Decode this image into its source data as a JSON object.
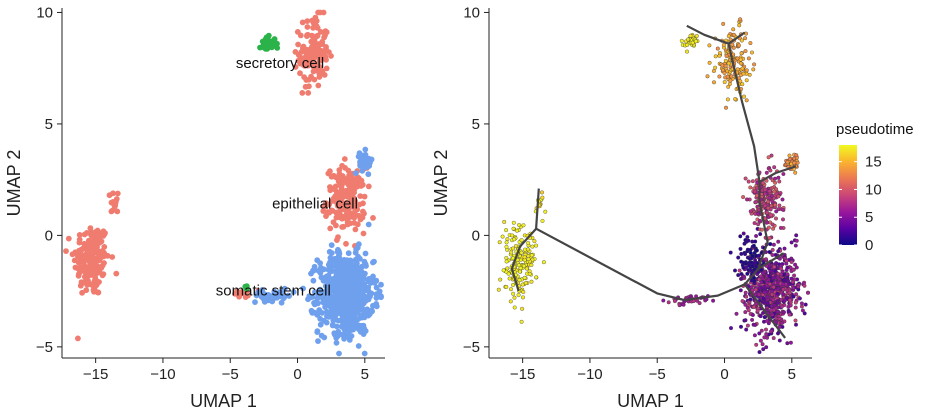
{
  "chart_data": [
    {
      "type": "scatter",
      "panel": "left",
      "title": "",
      "xlabel": "UMAP 1",
      "ylabel": "UMAP 2",
      "xlim": [
        -17.5,
        6.5
      ],
      "ylim": [
        -5.5,
        10.2
      ],
      "xticks": [
        -15,
        -10,
        -5,
        0,
        5
      ],
      "yticks": [
        -5,
        0,
        5,
        10
      ],
      "annotations": [
        {
          "text": "secretory cell",
          "x": -1.3,
          "y": 7.5
        },
        {
          "text": "epithelial cell",
          "x": 1.3,
          "y": 1.2
        },
        {
          "text": "somatic stem cell",
          "x": -1.8,
          "y": -2.7
        }
      ],
      "series": [
        {
          "color": "#F07C70",
          "clusters": [
            {
              "cx": -15.3,
              "cy": -1.1,
              "sx": 1.1,
              "sy": 1.4,
              "n": 180
            },
            {
              "cx": -13.6,
              "cy": 1.5,
              "sx": 0.25,
              "sy": 0.5,
              "n": 14
            },
            {
              "cx": 1.2,
              "cy": 8.2,
              "sx": 0.9,
              "sy": 1.3,
              "n": 150
            },
            {
              "cx": 3.6,
              "cy": 1.6,
              "sx": 1.2,
              "sy": 1.2,
              "n": 190
            },
            {
              "cx": -4.0,
              "cy": -2.6,
              "sx": 0.6,
              "sy": 0.15,
              "n": 12
            }
          ]
        },
        {
          "color": "#6FA0EE",
          "clusters": [
            {
              "cx": 3.6,
              "cy": -2.6,
              "sx": 1.7,
              "sy": 1.5,
              "n": 700
            },
            {
              "cx": 5.1,
              "cy": 3.3,
              "sx": 0.4,
              "sy": 0.4,
              "n": 35
            },
            {
              "cx": -1.8,
              "cy": -2.7,
              "sx": 1.3,
              "sy": 0.2,
              "n": 40
            }
          ]
        },
        {
          "color": "#2BB34A",
          "clusters": [
            {
              "cx": -2.2,
              "cy": 8.6,
              "sx": 0.5,
              "sy": 0.25,
              "n": 45
            },
            {
              "cx": -3.8,
              "cy": -2.3,
              "sx": 0.1,
              "sy": 0.1,
              "n": 4
            }
          ]
        }
      ]
    },
    {
      "type": "scatter",
      "panel": "right",
      "title": "",
      "xlabel": "UMAP 1",
      "ylabel": "UMAP 2",
      "xlim": [
        -17.5,
        6.5
      ],
      "ylim": [
        -5.5,
        10.2
      ],
      "xticks": [
        -15,
        -10,
        -5,
        0,
        5
      ],
      "yticks": [
        -5,
        0,
        5,
        10
      ],
      "legend": {
        "title": "pseudotime",
        "position": "right",
        "ticks": [
          0,
          5,
          10,
          15
        ],
        "range": [
          0,
          18
        ]
      },
      "colormap": [
        "#0D0887",
        "#5B02A3",
        "#9A179B",
        "#CB4678",
        "#EB7852",
        "#FBB32F",
        "#F0F921"
      ],
      "clusters": [
        {
          "cx": 3.5,
          "cy": -2.5,
          "sx": 1.7,
          "sy": 1.5,
          "n": 700,
          "t": [
            2,
            9
          ]
        },
        {
          "cx": 2.0,
          "cy": -1.0,
          "sx": 0.8,
          "sy": 0.8,
          "n": 80,
          "t": [
            0,
            2
          ]
        },
        {
          "cx": 3.0,
          "cy": 1.5,
          "sx": 1.1,
          "sy": 1.1,
          "n": 220,
          "t": [
            6,
            11
          ]
        },
        {
          "cx": 5.0,
          "cy": 3.2,
          "sx": 0.4,
          "sy": 0.4,
          "n": 35,
          "t": [
            12,
            15
          ]
        },
        {
          "cx": 0.6,
          "cy": 7.8,
          "sx": 1.0,
          "sy": 1.3,
          "n": 150,
          "t": [
            13,
            16
          ]
        },
        {
          "cx": -2.5,
          "cy": 8.7,
          "sx": 0.4,
          "sy": 0.25,
          "n": 40,
          "t": [
            17,
            18
          ]
        },
        {
          "cx": -15.2,
          "cy": -1.2,
          "sx": 1.0,
          "sy": 1.3,
          "n": 180,
          "t": [
            17,
            18
          ]
        },
        {
          "cx": -13.7,
          "cy": 1.4,
          "sx": 0.25,
          "sy": 0.5,
          "n": 14,
          "t": [
            16,
            18
          ]
        },
        {
          "cx": -2.5,
          "cy": -2.9,
          "sx": 1.5,
          "sy": 0.2,
          "n": 40,
          "t": [
            5,
            8
          ]
        }
      ],
      "trajectory": [
        [
          [
            -13.8,
            2.1
          ],
          [
            -14.0,
            0.3
          ],
          [
            -15.2,
            -0.5
          ],
          [
            -15.8,
            -1.5
          ],
          [
            -15.3,
            -2.5
          ]
        ],
        [
          [
            -14.0,
            0.3
          ],
          [
            -5.0,
            -2.6
          ],
          [
            -3.0,
            -2.9
          ],
          [
            -0.5,
            -2.7
          ],
          [
            1.5,
            -2.2
          ],
          [
            2.5,
            -1.5
          ],
          [
            3.2,
            -0.3
          ],
          [
            2.6,
            1.5
          ],
          [
            2.6,
            2.4
          ]
        ],
        [
          [
            2.6,
            2.4
          ],
          [
            3.8,
            2.8
          ],
          [
            5.3,
            3.1
          ]
        ],
        [
          [
            2.6,
            2.4
          ],
          [
            2.2,
            4.0
          ],
          [
            1.3,
            6.0
          ],
          [
            0.6,
            7.8
          ],
          [
            0.3,
            8.6
          ],
          [
            -1.5,
            9.0
          ],
          [
            -2.8,
            9.4
          ]
        ],
        [
          [
            0.3,
            8.6
          ],
          [
            1.5,
            9.1
          ]
        ],
        [
          [
            1.5,
            -2.2
          ],
          [
            3.5,
            -3.8
          ],
          [
            4.5,
            -4.6
          ]
        ],
        [
          [
            2.5,
            -1.5
          ],
          [
            4.4,
            -0.8
          ]
        ]
      ]
    }
  ]
}
